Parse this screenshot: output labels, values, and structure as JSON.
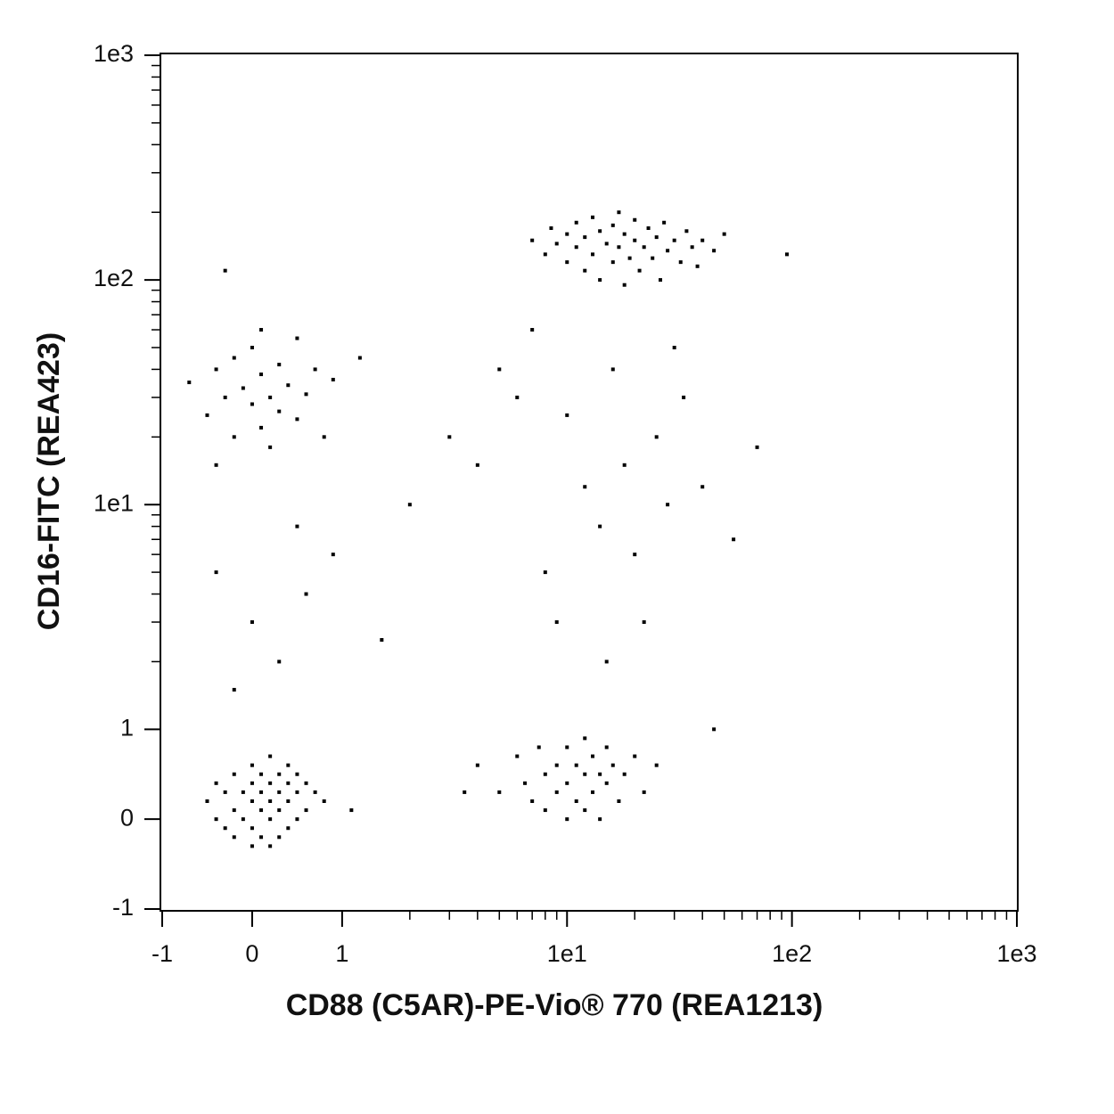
{
  "chart_data": {
    "type": "scatter",
    "x_label": "CD88 (C5AR)-PE-Vio® 770 (REA1213)",
    "y_label": "CD16-FITC (REA423)",
    "scale": "biexponential",
    "color": "#000000",
    "xlim": [
      -1,
      1000
    ],
    "ylim": [
      -1,
      1000
    ],
    "xticks": [
      -1,
      0,
      1,
      {
        "value": 10,
        "label": "1e1"
      },
      {
        "value": 100,
        "label": "1e2"
      },
      {
        "value": 1000,
        "label": "1e3"
      }
    ],
    "yticks": [
      -1,
      0,
      1,
      {
        "value": 10,
        "label": "1e1"
      },
      {
        "value": 100,
        "label": "1e2"
      },
      {
        "value": 1000,
        "label": "1e3"
      }
    ],
    "xminorticks": [
      2,
      3,
      4,
      5,
      6,
      7,
      8,
      9,
      20,
      30,
      40,
      50,
      60,
      70,
      80,
      90,
      200,
      300,
      400,
      500,
      600,
      700,
      800,
      900
    ],
    "yminorticks": [
      2,
      3,
      4,
      5,
      6,
      7,
      8,
      9,
      20,
      30,
      40,
      50,
      60,
      70,
      80,
      90,
      200,
      300,
      400,
      500,
      600,
      700,
      800,
      900
    ],
    "x": [
      -0.5,
      -0.4,
      -0.4,
      -0.3,
      -0.3,
      -0.2,
      -0.2,
      -0.2,
      -0.1,
      -0.1,
      0,
      0,
      0,
      0,
      0,
      0.1,
      0.1,
      0.1,
      0.1,
      0.2,
      0.2,
      0.2,
      0.2,
      0.2,
      0.3,
      0.3,
      0.3,
      0.3,
      0.4,
      0.4,
      0.4,
      0.4,
      0.5,
      0.5,
      0.5,
      0.6,
      0.6,
      0.7,
      0.8,
      1.1,
      -0.7,
      -0.5,
      -0.4,
      -0.3,
      -0.2,
      -0.2,
      -0.1,
      0,
      0,
      0.1,
      0.1,
      0.2,
      0.2,
      0.3,
      0.3,
      0.4,
      0.5,
      0.5,
      0.6,
      0.7,
      0.8,
      0.9,
      1.2,
      0.1,
      -0.4,
      4,
      5,
      6,
      6.5,
      7,
      7.5,
      8,
      8,
      9,
      9,
      10,
      10,
      10,
      11,
      11,
      12,
      12,
      12,
      13,
      13,
      14,
      14,
      15,
      15,
      16,
      17,
      18,
      20,
      22,
      25,
      7,
      8,
      8.5,
      9,
      10,
      10,
      11,
      11,
      12,
      12,
      13,
      13,
      14,
      14,
      15,
      16,
      16,
      17,
      17,
      18,
      18,
      19,
      20,
      20,
      21,
      22,
      23,
      24,
      25,
      26,
      27,
      28,
      30,
      32,
      34,
      36,
      38,
      40,
      45,
      50,
      -0.4,
      0.0,
      0.5,
      0.3,
      -0.2,
      0.6,
      0.9,
      1.5,
      2,
      3,
      3.5,
      4,
      5,
      6,
      7,
      8,
      9,
      10,
      12,
      14,
      15,
      16,
      18,
      20,
      22,
      25,
      28,
      30,
      33,
      40,
      45,
      55,
      70,
      95,
      -0.3
    ],
    "values": [
      0.2,
      0.4,
      0.0,
      0.3,
      -0.1,
      0.5,
      0.1,
      -0.2,
      0.3,
      0.0,
      0.6,
      0.4,
      0.2,
      -0.1,
      -0.3,
      0.5,
      0.3,
      0.1,
      -0.2,
      0.7,
      0.4,
      0.2,
      0.0,
      -0.3,
      0.5,
      0.3,
      0.1,
      -0.2,
      0.6,
      0.4,
      0.2,
      -0.1,
      0.5,
      0.3,
      0.0,
      0.4,
      0.1,
      0.3,
      0.2,
      0.1,
      35,
      25,
      40,
      30,
      20,
      45,
      33,
      28,
      50,
      22,
      38,
      30,
      18,
      42,
      26,
      34,
      24,
      55,
      31,
      40,
      20,
      36,
      45,
      60,
      15,
      0.6,
      0.3,
      0.7,
      0.4,
      0.2,
      0.8,
      0.5,
      0.1,
      0.6,
      0.3,
      0.8,
      0.4,
      0.0,
      0.6,
      0.2,
      0.9,
      0.5,
      0.1,
      0.7,
      0.3,
      0.5,
      0.0,
      0.8,
      0.4,
      0.6,
      0.2,
      0.5,
      0.7,
      0.3,
      0.6,
      150,
      130,
      170,
      145,
      120,
      160,
      180,
      140,
      110,
      155,
      130,
      190,
      165,
      100,
      145,
      120,
      175,
      200,
      140,
      95,
      160,
      125,
      150,
      185,
      110,
      140,
      170,
      125,
      155,
      100,
      180,
      135,
      150,
      120,
      165,
      140,
      115,
      150,
      135,
      160,
      5,
      3,
      8,
      2,
      1.5,
      4,
      6,
      2.5,
      10,
      20,
      0.3,
      15,
      40,
      30,
      60,
      5,
      3,
      25,
      12,
      8,
      2,
      40,
      15,
      6,
      3,
      20,
      10,
      50,
      30,
      12,
      1,
      7,
      18,
      130,
      110
    ]
  }
}
